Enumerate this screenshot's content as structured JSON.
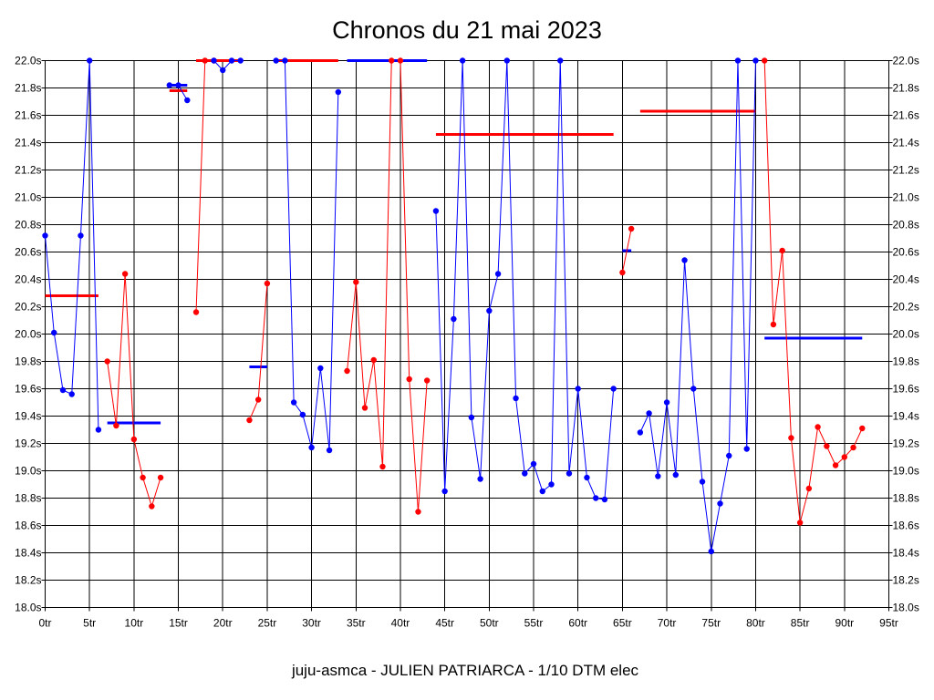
{
  "chart_data": {
    "type": "line",
    "title": "Chronos du 21 mai 2023",
    "xlabel": "juju-asmca - JULIEN PATRIARCA - 1/10 DTM elec",
    "ylabel": "",
    "xlim": [
      0,
      95
    ],
    "ylim": [
      18.0,
      22.0
    ],
    "grid": true,
    "y_tick_labels": [
      "18.0s",
      "18.2s",
      "18.4s",
      "18.6s",
      "18.8s",
      "19.0s",
      "19.2s",
      "19.4s",
      "19.6s",
      "19.8s",
      "20.0s",
      "20.2s",
      "20.4s",
      "20.6s",
      "20.8s",
      "21.0s",
      "21.2s",
      "21.4s",
      "21.6s",
      "21.8s",
      "22.0s"
    ],
    "x_tick_labels": [
      "0tr",
      "5tr",
      "10tr",
      "15tr",
      "20tr",
      "25tr",
      "30tr",
      "35tr",
      "40tr",
      "45tr",
      "50tr",
      "55tr",
      "60tr",
      "65tr",
      "70tr",
      "75tr",
      "80tr",
      "85tr",
      "90tr",
      "95tr"
    ],
    "colors": {
      "blue": "#0000ff",
      "red": "#ff0000"
    },
    "series": [
      {
        "color": "blue",
        "points": [
          [
            0,
            20.72
          ],
          [
            1,
            20.01
          ],
          [
            2,
            19.59
          ],
          [
            3,
            19.56
          ],
          [
            4,
            20.72
          ],
          [
            5,
            22.0
          ],
          [
            6,
            19.3
          ]
        ]
      },
      {
        "color": "red",
        "points": [
          [
            7,
            19.8
          ],
          [
            8,
            19.33
          ],
          [
            9,
            20.44
          ],
          [
            10,
            19.23
          ],
          [
            11,
            18.95
          ],
          [
            12,
            18.74
          ],
          [
            13,
            18.95
          ]
        ]
      },
      {
        "color": "blue",
        "points": [
          [
            14,
            21.82
          ],
          [
            15,
            21.82
          ],
          [
            16,
            21.71
          ]
        ]
      },
      {
        "color": "red",
        "points": [
          [
            17,
            20.16
          ],
          [
            18,
            22.0
          ],
          [
            19,
            22.0
          ]
        ]
      },
      {
        "color": "blue",
        "points": [
          [
            19,
            22.0
          ],
          [
            20,
            21.93
          ],
          [
            21,
            22.0
          ],
          [
            22,
            22.0
          ]
        ]
      },
      {
        "color": "red",
        "points": [
          [
            23,
            19.37
          ],
          [
            24,
            19.52
          ],
          [
            25,
            20.37
          ]
        ]
      },
      {
        "color": "blue",
        "points": [
          [
            26,
            22.0
          ],
          [
            27,
            22.0
          ],
          [
            28,
            19.5
          ],
          [
            29,
            19.41
          ],
          [
            30,
            19.17
          ],
          [
            31,
            19.75
          ],
          [
            32,
            19.15
          ],
          [
            33,
            21.77
          ]
        ]
      },
      {
        "color": "red",
        "points": [
          [
            34,
            19.73
          ],
          [
            35,
            20.38
          ],
          [
            36,
            19.46
          ],
          [
            37,
            19.81
          ],
          [
            38,
            19.03
          ],
          [
            39,
            22.0
          ]
        ]
      },
      {
        "color": "red",
        "points": [
          [
            40,
            22.0
          ],
          [
            41,
            19.67
          ],
          [
            42,
            18.7
          ],
          [
            43,
            19.66
          ]
        ]
      },
      {
        "color": "blue",
        "points": [
          [
            44,
            20.9
          ],
          [
            45,
            18.85
          ],
          [
            46,
            20.11
          ],
          [
            47,
            22.0
          ],
          [
            48,
            19.39
          ],
          [
            49,
            18.94
          ],
          [
            50,
            20.17
          ],
          [
            51,
            20.44
          ],
          [
            52,
            22.0
          ],
          [
            53,
            19.53
          ],
          [
            54,
            18.98
          ],
          [
            55,
            19.05
          ],
          [
            56,
            18.85
          ],
          [
            57,
            18.9
          ],
          [
            58,
            22.0
          ],
          [
            59,
            18.98
          ],
          [
            60,
            19.6
          ],
          [
            61,
            18.95
          ],
          [
            62,
            18.8
          ],
          [
            63,
            18.79
          ],
          [
            64,
            19.6
          ]
        ]
      },
      {
        "color": "red",
        "points": [
          [
            65,
            20.45
          ],
          [
            66,
            20.77
          ]
        ]
      },
      {
        "color": "blue",
        "points": [
          [
            67,
            19.28
          ],
          [
            68,
            19.42
          ],
          [
            69,
            18.96
          ],
          [
            70,
            19.5
          ],
          [
            71,
            18.97
          ],
          [
            72,
            20.54
          ],
          [
            73,
            19.6
          ],
          [
            74,
            18.92
          ],
          [
            75,
            18.41
          ],
          [
            76,
            18.76
          ],
          [
            77,
            19.11
          ],
          [
            78,
            22.0
          ],
          [
            79,
            19.16
          ],
          [
            80,
            22.0
          ]
        ]
      },
      {
        "color": "red",
        "points": [
          [
            81,
            22.0
          ],
          [
            82,
            20.07
          ],
          [
            83,
            20.61
          ],
          [
            84,
            19.24
          ],
          [
            85,
            18.62
          ],
          [
            86,
            18.87
          ],
          [
            87,
            19.32
          ],
          [
            88,
            19.18
          ],
          [
            89,
            19.04
          ],
          [
            90,
            19.1
          ],
          [
            91,
            19.17
          ],
          [
            92,
            19.31
          ]
        ]
      }
    ],
    "averages": [
      {
        "color": "red",
        "x": [
          0,
          6
        ],
        "y": 20.28
      },
      {
        "color": "blue",
        "x": [
          7,
          13
        ],
        "y": 19.35
      },
      {
        "color": "blue",
        "x": [
          14,
          16
        ],
        "y": 21.82
      },
      {
        "color": "red",
        "x": [
          14,
          16
        ],
        "y": 21.78
      },
      {
        "color": "red",
        "x": [
          17,
          22
        ],
        "y": 22.0
      },
      {
        "color": "blue",
        "x": [
          23,
          25
        ],
        "y": 19.76
      },
      {
        "color": "red",
        "x": [
          26,
          33
        ],
        "y": 22.0
      },
      {
        "color": "blue",
        "x": [
          34,
          43
        ],
        "y": 22.0
      },
      {
        "color": "red",
        "x": [
          44,
          64
        ],
        "y": 21.46
      },
      {
        "color": "blue",
        "x": [
          65,
          66
        ],
        "y": 20.61
      },
      {
        "color": "red",
        "x": [
          67,
          80
        ],
        "y": 21.63
      },
      {
        "color": "blue",
        "x": [
          81,
          92
        ],
        "y": 19.97
      }
    ]
  }
}
